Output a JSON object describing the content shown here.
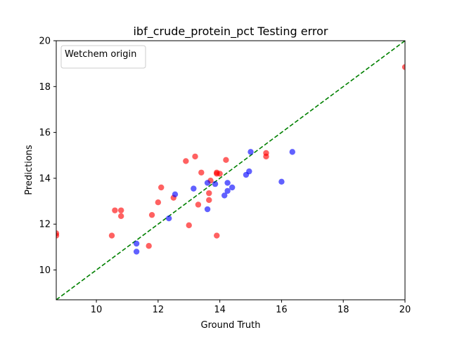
{
  "chart_data": {
    "type": "scatter",
    "title": "ibf_crude_protein_pct Testing error",
    "xlabel": "Ground Truth",
    "ylabel": "Predictions",
    "xlim": [
      8.7,
      20
    ],
    "ylim": [
      8.7,
      20
    ],
    "xticks": [
      10,
      12,
      14,
      16,
      18,
      20
    ],
    "yticks": [
      10,
      12,
      14,
      16,
      18,
      20
    ],
    "grid": false,
    "legend": {
      "title": "Wetchem origin",
      "placement": "top-left"
    },
    "reference_line": {
      "style": "dashed",
      "color": "#008000",
      "x": [
        8.7,
        20
      ],
      "y": [
        8.7,
        20
      ]
    },
    "series": [
      {
        "color": "#ff0000",
        "points": [
          [
            8.7,
            11.6
          ],
          [
            8.7,
            11.5
          ],
          [
            10.5,
            11.5
          ],
          [
            10.6,
            12.6
          ],
          [
            10.8,
            12.6
          ],
          [
            10.8,
            12.35
          ],
          [
            11.7,
            11.05
          ],
          [
            11.8,
            12.4
          ],
          [
            12.0,
            12.95
          ],
          [
            12.1,
            13.6
          ],
          [
            12.5,
            13.15
          ],
          [
            12.9,
            14.75
          ],
          [
            13.0,
            11.95
          ],
          [
            13.2,
            14.95
          ],
          [
            13.3,
            12.85
          ],
          [
            13.4,
            14.25
          ],
          [
            13.65,
            13.35
          ],
          [
            13.65,
            13.05
          ],
          [
            13.7,
            13.9
          ],
          [
            13.9,
            14.25
          ],
          [
            13.9,
            14.2
          ],
          [
            13.9,
            11.5
          ],
          [
            14.0,
            14.2
          ],
          [
            14.2,
            14.8
          ],
          [
            15.5,
            15.1
          ],
          [
            15.5,
            14.95
          ],
          [
            20.0,
            18.85
          ]
        ]
      },
      {
        "color": "#0000ff",
        "points": [
          [
            11.3,
            11.15
          ],
          [
            11.3,
            10.8
          ],
          [
            12.35,
            12.25
          ],
          [
            12.55,
            13.3
          ],
          [
            13.15,
            13.55
          ],
          [
            13.6,
            13.8
          ],
          [
            13.6,
            12.65
          ],
          [
            13.85,
            13.75
          ],
          [
            14.15,
            13.25
          ],
          [
            14.25,
            13.8
          ],
          [
            14.25,
            13.45
          ],
          [
            14.4,
            13.6
          ],
          [
            14.85,
            14.15
          ],
          [
            14.95,
            14.3
          ],
          [
            15.0,
            15.15
          ],
          [
            16.0,
            13.85
          ],
          [
            16.35,
            15.15
          ]
        ]
      }
    ]
  }
}
